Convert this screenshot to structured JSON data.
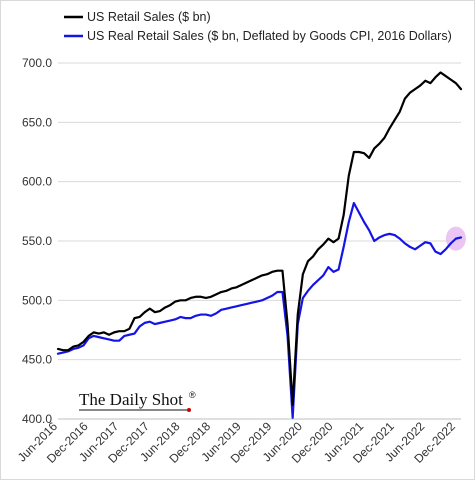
{
  "chart_data": {
    "type": "line",
    "title": "",
    "xlabel": "",
    "ylabel": "",
    "ylim": [
      400,
      700
    ],
    "yticks": [
      "400.0",
      "450.0",
      "500.0",
      "550.0",
      "600.0",
      "650.0",
      "700.0"
    ],
    "xticks": [
      "Jun-2016",
      "Dec-2016",
      "Jun-2017",
      "Dec-2017",
      "Jun-2018",
      "Dec-2018",
      "Jun-2019",
      "Dec-2019",
      "Jun-2020",
      "Dec-2020",
      "Jun-2021",
      "Dec-2021",
      "Jun-2022",
      "Dec-2022"
    ],
    "grid": "horizontal",
    "legend_position": "top-left",
    "x": [
      "2016-06",
      "2016-07",
      "2016-08",
      "2016-09",
      "2016-10",
      "2016-11",
      "2016-12",
      "2017-01",
      "2017-02",
      "2017-03",
      "2017-04",
      "2017-05",
      "2017-06",
      "2017-07",
      "2017-08",
      "2017-09",
      "2017-10",
      "2017-11",
      "2017-12",
      "2018-01",
      "2018-02",
      "2018-03",
      "2018-04",
      "2018-05",
      "2018-06",
      "2018-07",
      "2018-08",
      "2018-09",
      "2018-10",
      "2018-11",
      "2018-12",
      "2019-01",
      "2019-02",
      "2019-03",
      "2019-04",
      "2019-05",
      "2019-06",
      "2019-07",
      "2019-08",
      "2019-09",
      "2019-10",
      "2019-11",
      "2019-12",
      "2020-01",
      "2020-02",
      "2020-03",
      "2020-04",
      "2020-05",
      "2020-06",
      "2020-07",
      "2020-08",
      "2020-09",
      "2020-10",
      "2020-11",
      "2020-12",
      "2021-01",
      "2021-02",
      "2021-03",
      "2021-04",
      "2021-05",
      "2021-06",
      "2021-07",
      "2021-08",
      "2021-09",
      "2021-10",
      "2021-11",
      "2021-12",
      "2022-01",
      "2022-02",
      "2022-03",
      "2022-04",
      "2022-05",
      "2022-06",
      "2022-07",
      "2022-08",
      "2022-09",
      "2022-10",
      "2022-11",
      "2022-12",
      "2023-01"
    ],
    "series": [
      {
        "name": "US Retail Sales ($ bn)",
        "color": "#000000",
        "values": [
          459,
          458,
          458,
          461,
          462,
          465,
          470,
          473,
          472,
          473,
          471,
          473,
          474,
          474,
          476,
          485,
          486,
          490,
          493,
          490,
          491,
          494,
          496,
          499,
          500,
          500,
          502,
          503,
          503,
          502,
          503,
          505,
          507,
          508,
          510,
          511,
          513,
          515,
          517,
          519,
          521,
          522,
          524,
          525,
          525,
          480,
          412,
          488,
          522,
          533,
          537,
          543,
          547,
          552,
          549,
          552,
          572,
          605,
          625,
          625,
          624,
          620,
          628,
          632,
          637,
          645,
          652,
          659,
          670,
          675,
          678,
          681,
          685,
          683,
          688,
          692,
          689,
          686,
          683,
          678
        ]
      },
      {
        "name": "US Real Retail Sales ($ bn, Deflated by Goods CPI, 2016 Dollars)",
        "color": "#1414e6",
        "values": [
          455,
          456,
          457,
          459,
          460,
          462,
          468,
          470,
          469,
          468,
          467,
          466,
          466,
          470,
          471,
          472,
          478,
          481,
          482,
          480,
          481,
          482,
          483,
          484,
          486,
          485,
          485,
          487,
          488,
          488,
          487,
          489,
          492,
          493,
          494,
          495,
          496,
          497,
          498,
          499,
          500,
          502,
          504,
          507,
          507,
          470,
          401,
          480,
          502,
          508,
          513,
          517,
          521,
          528,
          524,
          526,
          545,
          566,
          582,
          574,
          566,
          559,
          550,
          553,
          555,
          556,
          555,
          552,
          548,
          545,
          543,
          546,
          549,
          548,
          541,
          539,
          543,
          548,
          552,
          553
        ]
      }
    ]
  },
  "watermark": {
    "text": "The Daily Shot",
    "mark": "®"
  },
  "highlight_color": "#e6b8f0"
}
